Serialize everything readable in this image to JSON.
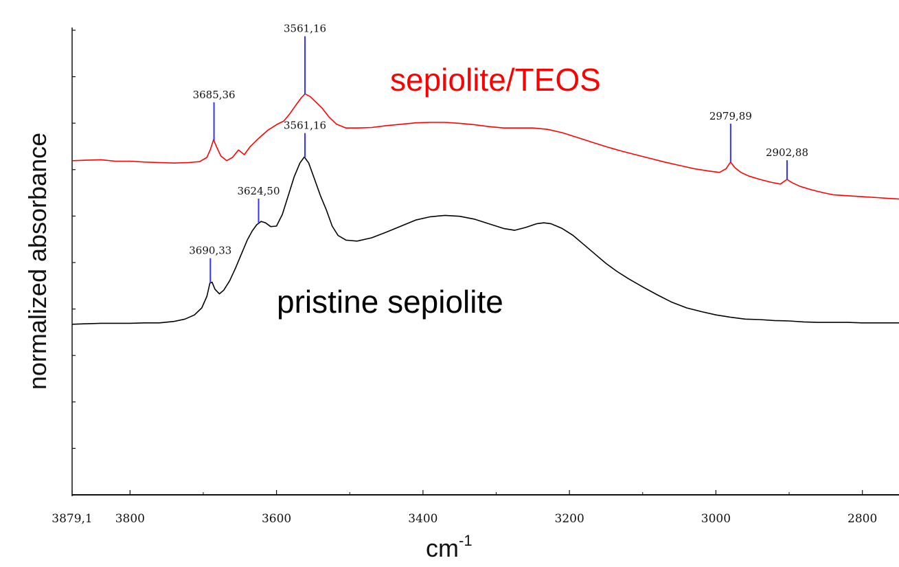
{
  "chart_data": {
    "type": "line",
    "title": "",
    "xlabel": "cm",
    "xlabel_superscript": "-1",
    "ylabel": "normalized absorbance",
    "xlim": [
      3879.1,
      2750
    ],
    "x_reversed": true,
    "ylim": [
      0,
      1
    ],
    "grid": false,
    "x_ticks": [
      {
        "value": 3879.1,
        "label": "3879,1"
      },
      {
        "value": 3800,
        "label": "3800"
      },
      {
        "value": 3600,
        "label": "3600"
      },
      {
        "value": 3400,
        "label": "3400"
      },
      {
        "value": 3200,
        "label": "3200"
      },
      {
        "value": 3000,
        "label": "3000"
      },
      {
        "value": 2800,
        "label": "2800"
      }
    ],
    "series": [
      {
        "name": "sepiolite/TEOS",
        "color": "#ff0000",
        "points": [
          [
            3879,
            0.715
          ],
          [
            3860,
            0.716
          ],
          [
            3840,
            0.717
          ],
          [
            3820,
            0.714
          ],
          [
            3800,
            0.714
          ],
          [
            3780,
            0.712
          ],
          [
            3760,
            0.711
          ],
          [
            3740,
            0.71
          ],
          [
            3720,
            0.711
          ],
          [
            3705,
            0.713
          ],
          [
            3695,
            0.722
          ],
          [
            3690,
            0.74
          ],
          [
            3686,
            0.76
          ],
          [
            3682,
            0.745
          ],
          [
            3676,
            0.725
          ],
          [
            3668,
            0.715
          ],
          [
            3660,
            0.722
          ],
          [
            3652,
            0.738
          ],
          [
            3644,
            0.728
          ],
          [
            3636,
            0.745
          ],
          [
            3625,
            0.762
          ],
          [
            3612,
            0.78
          ],
          [
            3600,
            0.792
          ],
          [
            3590,
            0.8
          ],
          [
            3582,
            0.815
          ],
          [
            3574,
            0.833
          ],
          [
            3566,
            0.85
          ],
          [
            3561,
            0.858
          ],
          [
            3554,
            0.852
          ],
          [
            3546,
            0.84
          ],
          [
            3538,
            0.828
          ],
          [
            3528,
            0.808
          ],
          [
            3518,
            0.793
          ],
          [
            3505,
            0.785
          ],
          [
            3490,
            0.785
          ],
          [
            3470,
            0.786
          ],
          [
            3450,
            0.79
          ],
          [
            3430,
            0.793
          ],
          [
            3410,
            0.796
          ],
          [
            3390,
            0.797
          ],
          [
            3370,
            0.797
          ],
          [
            3350,
            0.795
          ],
          [
            3330,
            0.792
          ],
          [
            3310,
            0.788
          ],
          [
            3290,
            0.785
          ],
          [
            3270,
            0.785
          ],
          [
            3250,
            0.785
          ],
          [
            3230,
            0.782
          ],
          [
            3210,
            0.775
          ],
          [
            3190,
            0.765
          ],
          [
            3170,
            0.755
          ],
          [
            3150,
            0.745
          ],
          [
            3130,
            0.736
          ],
          [
            3110,
            0.728
          ],
          [
            3090,
            0.72
          ],
          [
            3070,
            0.712
          ],
          [
            3050,
            0.705
          ],
          [
            3030,
            0.698
          ],
          [
            3010,
            0.693
          ],
          [
            2995,
            0.69
          ],
          [
            2986,
            0.698
          ],
          [
            2980,
            0.712
          ],
          [
            2974,
            0.7
          ],
          [
            2966,
            0.69
          ],
          [
            2955,
            0.682
          ],
          [
            2940,
            0.675
          ],
          [
            2925,
            0.669
          ],
          [
            2912,
            0.665
          ],
          [
            2903,
            0.675
          ],
          [
            2896,
            0.668
          ],
          [
            2885,
            0.66
          ],
          [
            2870,
            0.653
          ],
          [
            2855,
            0.647
          ],
          [
            2840,
            0.642
          ],
          [
            2820,
            0.64
          ],
          [
            2800,
            0.638
          ],
          [
            2780,
            0.636
          ],
          [
            2760,
            0.634
          ],
          [
            2750,
            0.633
          ]
        ],
        "peaks": [
          {
            "x": 3685.36,
            "label": "3685,36"
          },
          {
            "x": 3561.16,
            "label": "3561,16"
          },
          {
            "x": 2979.89,
            "label": "2979,89"
          },
          {
            "x": 2902.88,
            "label": "2902,88"
          }
        ]
      },
      {
        "name": "pristine sepiolite",
        "color": "#000000",
        "points": [
          [
            3879,
            0.365
          ],
          [
            3860,
            0.366
          ],
          [
            3840,
            0.367
          ],
          [
            3820,
            0.367
          ],
          [
            3800,
            0.367
          ],
          [
            3780,
            0.368
          ],
          [
            3760,
            0.368
          ],
          [
            3740,
            0.371
          ],
          [
            3725,
            0.376
          ],
          [
            3712,
            0.385
          ],
          [
            3702,
            0.4
          ],
          [
            3695,
            0.425
          ],
          [
            3691,
            0.453
          ],
          [
            3688,
            0.455
          ],
          [
            3684,
            0.44
          ],
          [
            3678,
            0.43
          ],
          [
            3672,
            0.438
          ],
          [
            3664,
            0.458
          ],
          [
            3656,
            0.485
          ],
          [
            3648,
            0.515
          ],
          [
            3640,
            0.545
          ],
          [
            3633,
            0.565
          ],
          [
            3627,
            0.578
          ],
          [
            3621,
            0.585
          ],
          [
            3615,
            0.582
          ],
          [
            3608,
            0.574
          ],
          [
            3600,
            0.575
          ],
          [
            3592,
            0.6
          ],
          [
            3584,
            0.64
          ],
          [
            3576,
            0.68
          ],
          [
            3568,
            0.71
          ],
          [
            3562,
            0.723
          ],
          [
            3556,
            0.71
          ],
          [
            3548,
            0.675
          ],
          [
            3540,
            0.64
          ],
          [
            3532,
            0.61
          ],
          [
            3524,
            0.575
          ],
          [
            3516,
            0.555
          ],
          [
            3505,
            0.545
          ],
          [
            3490,
            0.543
          ],
          [
            3470,
            0.55
          ],
          [
            3450,
            0.562
          ],
          [
            3430,
            0.575
          ],
          [
            3410,
            0.588
          ],
          [
            3390,
            0.595
          ],
          [
            3370,
            0.598
          ],
          [
            3350,
            0.596
          ],
          [
            3330,
            0.59
          ],
          [
            3310,
            0.58
          ],
          [
            3290,
            0.57
          ],
          [
            3275,
            0.566
          ],
          [
            3260,
            0.572
          ],
          [
            3245,
            0.58
          ],
          [
            3235,
            0.582
          ],
          [
            3225,
            0.58
          ],
          [
            3210,
            0.57
          ],
          [
            3195,
            0.555
          ],
          [
            3180,
            0.535
          ],
          [
            3165,
            0.515
          ],
          [
            3150,
            0.495
          ],
          [
            3135,
            0.478
          ],
          [
            3120,
            0.463
          ],
          [
            3100,
            0.445
          ],
          [
            3080,
            0.428
          ],
          [
            3060,
            0.412
          ],
          [
            3040,
            0.4
          ],
          [
            3020,
            0.392
          ],
          [
            3000,
            0.385
          ],
          [
            2980,
            0.38
          ],
          [
            2960,
            0.376
          ],
          [
            2940,
            0.375
          ],
          [
            2920,
            0.373
          ],
          [
            2900,
            0.372
          ],
          [
            2880,
            0.37
          ],
          [
            2860,
            0.369
          ],
          [
            2840,
            0.369
          ],
          [
            2820,
            0.369
          ],
          [
            2800,
            0.368
          ],
          [
            2780,
            0.368
          ],
          [
            2760,
            0.368
          ],
          [
            2750,
            0.368
          ]
        ],
        "peaks": [
          {
            "x": 3690.33,
            "label": "3690,33"
          },
          {
            "x": 3624.5,
            "label": "3624,50"
          },
          {
            "x": 3561.16,
            "label": "3561,16"
          }
        ]
      }
    ],
    "peak_marker_color": "#3333ff"
  }
}
